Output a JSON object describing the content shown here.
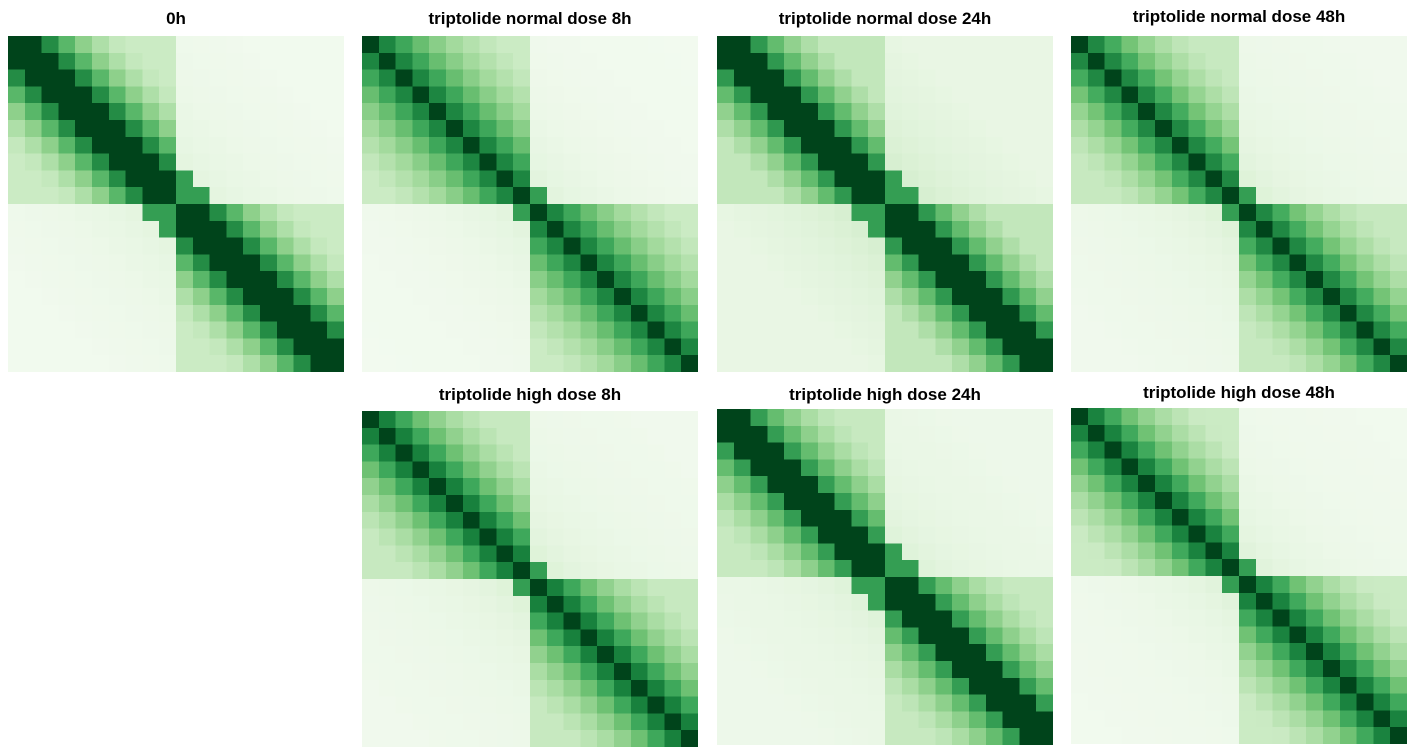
{
  "colors": {
    "colormap": "greens",
    "low": "#f7fcf5",
    "high": "#00441b",
    "background": "#ffffff"
  },
  "chart_data": [
    {
      "type": "heatmap",
      "title": "0h",
      "size": 20,
      "tad_boundary": 10,
      "diag_width": 1.6,
      "decay": 0.24,
      "within_tad": 0.28,
      "between_tad": 0.05
    },
    {
      "type": "heatmap",
      "title": "triptolide normal dose 8h",
      "size": 20,
      "tad_boundary": 10,
      "diag_width": 0.55,
      "decay": 0.16,
      "within_tad": 0.28,
      "between_tad": 0.04
    },
    {
      "type": "heatmap",
      "title": "triptolide normal dose 24h",
      "size": 20,
      "tad_boundary": 10,
      "diag_width": 1.3,
      "decay": 0.22,
      "within_tad": 0.32,
      "between_tad": 0.12
    },
    {
      "type": "heatmap",
      "title": "triptolide normal dose 48h",
      "size": 20,
      "tad_boundary": 10,
      "diag_width": 0.55,
      "decay": 0.18,
      "within_tad": 0.3,
      "between_tad": 0.06
    },
    {
      "type": "heatmap",
      "title": "triptolide high dose 8h",
      "size": 20,
      "tad_boundary": 10,
      "diag_width": 0.7,
      "decay": 0.18,
      "within_tad": 0.3,
      "between_tad": 0.06
    },
    {
      "type": "heatmap",
      "title": "triptolide high dose 24h",
      "size": 20,
      "tad_boundary": 10,
      "diag_width": 1.1,
      "decay": 0.2,
      "within_tad": 0.3,
      "between_tad": 0.08
    },
    {
      "type": "heatmap",
      "title": "triptolide high dose 48h",
      "size": 20,
      "tad_boundary": 10,
      "diag_width": 0.65,
      "decay": 0.18,
      "within_tad": 0.28,
      "between_tad": 0.05
    }
  ]
}
